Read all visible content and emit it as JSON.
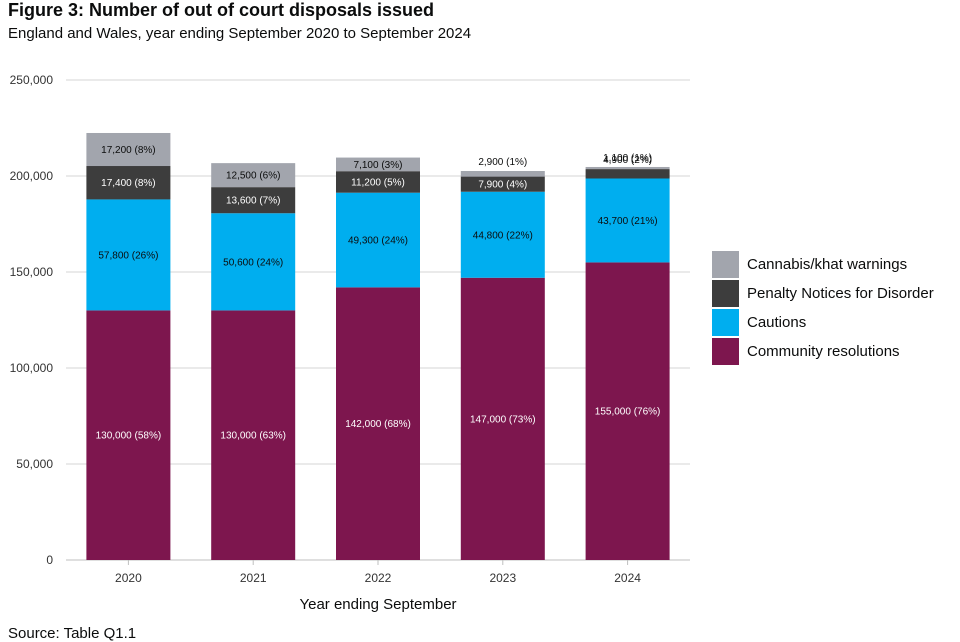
{
  "title": "Figure 3: Number of out of court disposals issued",
  "subtitle": "England and Wales, year ending September 2020 to September 2024",
  "source": "Source: Table Q1.1",
  "chart_data": {
    "type": "bar",
    "stacked": true,
    "xlabel": "Year ending September",
    "ylabel": "",
    "ylim": [
      0,
      250000
    ],
    "yticks": [
      0,
      50000,
      100000,
      150000,
      200000,
      250000
    ],
    "ytick_labels": [
      "0",
      "50,000",
      "100,000",
      "150,000",
      "200,000",
      "250,000"
    ],
    "grid": true,
    "legend_position": "right",
    "categories": [
      "2020",
      "2021",
      "2022",
      "2023",
      "2024"
    ],
    "series": [
      {
        "name": "Community resolutions",
        "color": "#7d164e",
        "values": [
          130000,
          130000,
          142000,
          147000,
          155000
        ],
        "labels": [
          "130,000 (58%)",
          "130,000 (63%)",
          "142,000 (68%)",
          "147,000 (73%)",
          "155,000 (76%)"
        ]
      },
      {
        "name": "Cautions",
        "color": "#00aeef",
        "values": [
          57800,
          50600,
          49300,
          44800,
          43700
        ],
        "labels": [
          "57,800 (26%)",
          "50,600 (24%)",
          "49,300 (24%)",
          "44,800 (22%)",
          "43,700 (21%)"
        ]
      },
      {
        "name": "Penalty Notices for Disorder",
        "color": "#3d3d3d",
        "values": [
          17400,
          13600,
          11200,
          7900,
          4900
        ],
        "labels": [
          "17,400 (8%)",
          "13,600 (7%)",
          "11,200 (5%)",
          "7,900 (4%)",
          "4,900 (2%)"
        ]
      },
      {
        "name": "Cannabis/khat warnings",
        "color": "#a2a5ad",
        "values": [
          17200,
          12500,
          7100,
          2900,
          1100
        ],
        "labels": [
          "17,200 (8%)",
          "12,500 (6%)",
          "7,100 (3%)",
          "2,900 (1%)",
          "1,100 (1%)"
        ]
      }
    ]
  }
}
